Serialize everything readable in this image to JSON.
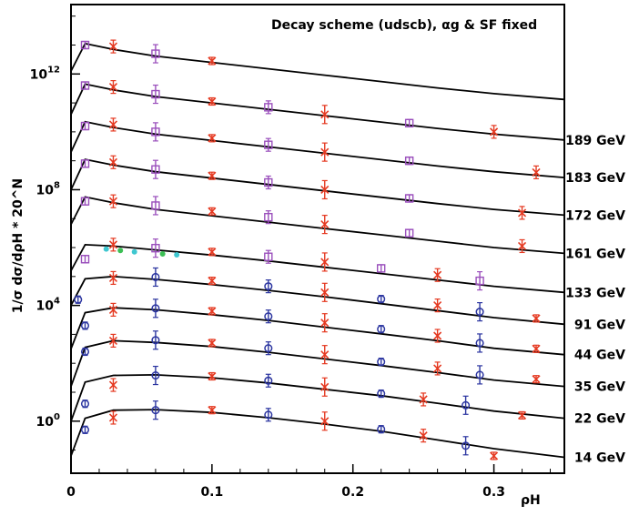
{
  "chart_data": {
    "type": "line",
    "title": "Decay scheme (udscb), αg & SF fixed",
    "xlabel": "ρH",
    "ylabel": "1/σ dσ/dρH * 20^N",
    "xlim": [
      0,
      0.35
    ],
    "ylim_log10": [
      -1.8,
      14.4
    ],
    "log_y": true,
    "x_tick_labels": [
      "0",
      "0.1",
      "0.2",
      "0.3"
    ],
    "y_tick_labels": [
      {
        "base": "10",
        "exp": "0",
        "value": 1
      },
      {
        "base": "10",
        "exp": "4",
        "value": 10000
      },
      {
        "base": "10",
        "exp": "8",
        "value": 100000000
      },
      {
        "base": "10",
        "exp": "12",
        "value": 1000000000000
      }
    ],
    "colors": {
      "curve": "#000000",
      "blue": "#2b35a0",
      "red": "#e53a22",
      "purple": "#9a4fbc",
      "cyan": "#3fc7d0",
      "green": "#3cbf55"
    },
    "marker_legend": {
      "x": "red",
      "circle": "blue",
      "square": "purple"
    },
    "series": [
      {
        "name": "14 GeV",
        "log10_values": [
          -1.2,
          0.1,
          0.38,
          0.4,
          0.3,
          0.12,
          -0.1,
          -0.35,
          -0.65,
          -0.95,
          -1.25
        ],
        "points": [
          [
            0.01,
            -0.3
          ],
          [
            0.03,
            0.12
          ],
          [
            0.06,
            0.38
          ],
          [
            0.1,
            0.38
          ],
          [
            0.14,
            0.22
          ],
          [
            0.18,
            0.0
          ],
          [
            0.22,
            -0.28
          ],
          [
            0.25,
            -0.5
          ],
          [
            0.28,
            -0.85
          ],
          [
            0.3,
            -1.2
          ]
        ]
      },
      {
        "name": "22 GeV",
        "log10_values": [
          0.0,
          1.35,
          1.58,
          1.6,
          1.5,
          1.32,
          1.1,
          0.88,
          0.62,
          0.35,
          0.1
        ],
        "points": [
          [
            0.01,
            0.6
          ],
          [
            0.03,
            1.25
          ],
          [
            0.06,
            1.58
          ],
          [
            0.1,
            1.55
          ],
          [
            0.14,
            1.4
          ],
          [
            0.18,
            1.18
          ],
          [
            0.22,
            0.95
          ],
          [
            0.25,
            0.75
          ],
          [
            0.28,
            0.55
          ],
          [
            0.32,
            0.2
          ]
        ]
      },
      {
        "name": "35 GeV",
        "log10_values": [
          1.2,
          2.55,
          2.78,
          2.72,
          2.58,
          2.38,
          2.15,
          1.92,
          1.68,
          1.42,
          1.2
        ],
        "points": [
          [
            0.01,
            2.4
          ],
          [
            0.03,
            2.78
          ],
          [
            0.06,
            2.8
          ],
          [
            0.1,
            2.7
          ],
          [
            0.14,
            2.52
          ],
          [
            0.18,
            2.3
          ],
          [
            0.22,
            2.05
          ],
          [
            0.26,
            1.82
          ],
          [
            0.29,
            1.6
          ],
          [
            0.33,
            1.45
          ]
        ]
      },
      {
        "name": "44 GeV",
        "log10_values": [
          2.5,
          3.75,
          3.92,
          3.85,
          3.68,
          3.48,
          3.25,
          3.02,
          2.78,
          2.52,
          2.3
        ],
        "points": [
          [
            0.01,
            3.3
          ],
          [
            0.03,
            3.85
          ],
          [
            0.06,
            3.9
          ],
          [
            0.1,
            3.8
          ],
          [
            0.14,
            3.62
          ],
          [
            0.18,
            3.4
          ],
          [
            0.22,
            3.18
          ],
          [
            0.26,
            2.95
          ],
          [
            0.29,
            2.7
          ],
          [
            0.33,
            2.5
          ]
        ]
      },
      {
        "name": "91 GeV",
        "log10_values": [
          4.0,
          4.92,
          5.0,
          4.9,
          4.72,
          4.52,
          4.3,
          4.06,
          3.82,
          3.58,
          3.35
        ],
        "points": [
          [
            0.005,
            4.2
          ],
          [
            0.03,
            4.95
          ],
          [
            0.06,
            4.98
          ],
          [
            0.1,
            4.85
          ],
          [
            0.14,
            4.66
          ],
          [
            0.18,
            4.45
          ],
          [
            0.22,
            4.22
          ],
          [
            0.26,
            4.0
          ],
          [
            0.29,
            3.78
          ],
          [
            0.33,
            3.55
          ]
        ]
      },
      {
        "name": "133 GeV",
        "log10_values": [
          5.2,
          6.1,
          6.05,
          5.92,
          5.74,
          5.54,
          5.32,
          5.1,
          4.88,
          4.66,
          4.45
        ],
        "points": [
          [
            0.01,
            5.6
          ],
          [
            0.03,
            6.1
          ],
          [
            0.06,
            5.98
          ],
          [
            0.1,
            5.85
          ],
          [
            0.14,
            5.68
          ],
          [
            0.18,
            5.5
          ],
          [
            0.22,
            5.28
          ],
          [
            0.26,
            5.05
          ],
          [
            0.29,
            4.85
          ]
        ]
      },
      {
        "name": "161 GeV",
        "log10_values": [
          6.8,
          7.75,
          7.55,
          7.32,
          7.1,
          6.88,
          6.66,
          6.44,
          6.22,
          6.0,
          5.8
        ],
        "points": [
          [
            0.01,
            7.6
          ],
          [
            0.03,
            7.6
          ],
          [
            0.06,
            7.45
          ],
          [
            0.1,
            7.25
          ],
          [
            0.14,
            7.05
          ],
          [
            0.18,
            6.8
          ],
          [
            0.24,
            6.5
          ],
          [
            0.32,
            6.05
          ]
        ]
      },
      {
        "name": "172 GeV",
        "log10_values": [
          8.0,
          9.05,
          8.85,
          8.62,
          8.4,
          8.18,
          7.96,
          7.74,
          7.52,
          7.32,
          7.12
        ],
        "points": [
          [
            0.01,
            8.9
          ],
          [
            0.03,
            8.95
          ],
          [
            0.06,
            8.7
          ],
          [
            0.1,
            8.48
          ],
          [
            0.14,
            8.25
          ],
          [
            0.18,
            8.0
          ],
          [
            0.24,
            7.7
          ],
          [
            0.32,
            7.2
          ]
        ]
      },
      {
        "name": "183 GeV",
        "log10_values": [
          9.3,
          10.35,
          10.15,
          9.92,
          9.7,
          9.48,
          9.26,
          9.04,
          8.82,
          8.62,
          8.42
        ],
        "points": [
          [
            0.01,
            10.2
          ],
          [
            0.03,
            10.25
          ],
          [
            0.06,
            10.0
          ],
          [
            0.1,
            9.78
          ],
          [
            0.14,
            9.55
          ],
          [
            0.18,
            9.3
          ],
          [
            0.24,
            9.0
          ],
          [
            0.33,
            8.6
          ]
        ]
      },
      {
        "name": "189 GeV",
        "log10_values": [
          10.6,
          11.65,
          11.45,
          11.22,
          11.0,
          10.78,
          10.56,
          10.34,
          10.12,
          9.92,
          9.72
        ],
        "points": [
          [
            0.01,
            11.6
          ],
          [
            0.03,
            11.55
          ],
          [
            0.06,
            11.3
          ],
          [
            0.1,
            11.05
          ],
          [
            0.14,
            10.85
          ],
          [
            0.18,
            10.6
          ],
          [
            0.24,
            10.3
          ],
          [
            0.3,
            10.0
          ]
        ]
      },
      {
        "name": "",
        "log10_values": [
          12.1,
          13.05,
          12.85,
          12.62,
          12.4,
          12.18,
          11.96,
          11.74,
          11.52,
          11.32,
          11.12
        ],
        "points": [
          [
            0.01,
            13.0
          ],
          [
            0.03,
            12.95
          ],
          [
            0.06,
            12.7
          ],
          [
            0.1,
            12.45
          ]
        ]
      }
    ],
    "x": [
      0.0,
      0.01,
      0.03,
      0.06,
      0.1,
      0.14,
      0.18,
      0.22,
      0.26,
      0.3,
      0.35
    ]
  }
}
